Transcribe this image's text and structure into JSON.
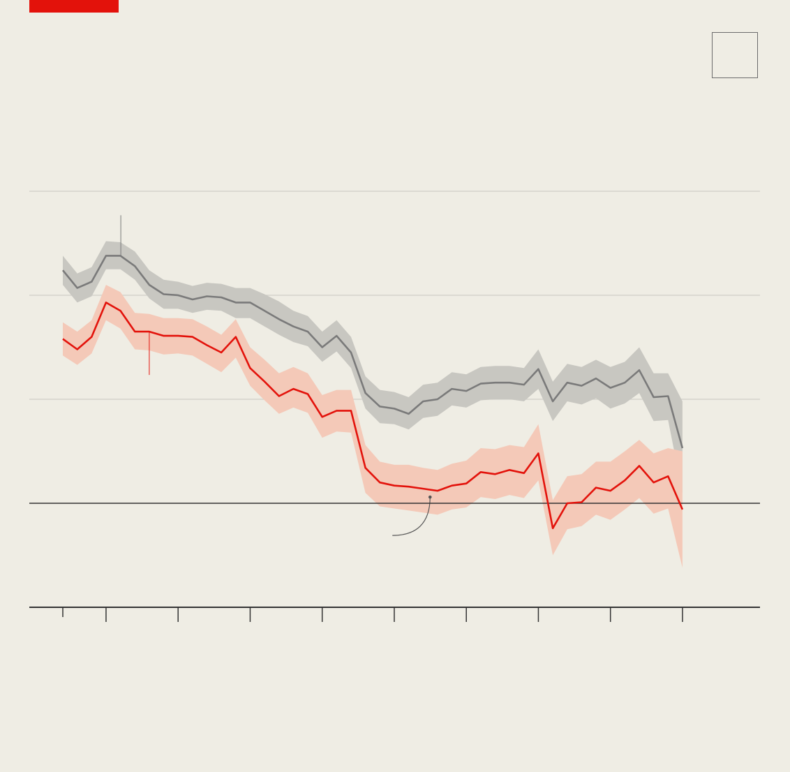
{
  "colors": {
    "background": "#efede4",
    "brand_red": "#e3120b",
    "series_grey": "#7a7a7a",
    "band_grey": "#c8c7c1",
    "band_red": "#f4c9b8",
    "grid": "#cfcdc6",
    "axis": "#333333"
  },
  "chart_data": {
    "type": "line",
    "title": "",
    "xlabel": "",
    "ylabel": "",
    "ylim": [
      -1,
      3
    ],
    "baseline": 0,
    "grid": true,
    "x": [
      0,
      1,
      2,
      3,
      4,
      5,
      6,
      7,
      8,
      9,
      10,
      11,
      12,
      13,
      14,
      15,
      16,
      17,
      18,
      19,
      20,
      21,
      22,
      23,
      24,
      25,
      26,
      27,
      28,
      29,
      30,
      31,
      32,
      33,
      34,
      35,
      36,
      37,
      38,
      39,
      40,
      41,
      42,
      43
    ],
    "x_ticks": [
      0,
      3,
      8,
      13,
      18,
      23,
      28,
      33,
      38,
      43
    ],
    "series": [
      {
        "name": "",
        "color": "grey",
        "values": [
          2.24,
          2.07,
          2.13,
          2.38,
          2.38,
          2.28,
          2.1,
          2.01,
          2.0,
          1.96,
          1.99,
          1.98,
          1.93,
          1.93,
          1.85,
          1.77,
          1.7,
          1.65,
          1.5,
          1.61,
          1.45,
          1.06,
          0.93,
          0.91,
          0.86,
          0.98,
          1.0,
          1.1,
          1.08,
          1.15,
          1.16,
          1.16,
          1.14,
          1.29,
          0.98,
          1.16,
          1.13,
          1.2,
          1.11,
          1.16,
          1.28,
          1.02,
          1.03,
          0.53
        ],
        "lower": [
          2.1,
          1.93,
          1.99,
          2.25,
          2.25,
          2.15,
          1.97,
          1.87,
          1.87,
          1.83,
          1.86,
          1.85,
          1.78,
          1.78,
          1.7,
          1.62,
          1.55,
          1.51,
          1.36,
          1.46,
          1.3,
          0.91,
          0.77,
          0.76,
          0.71,
          0.82,
          0.84,
          0.94,
          0.92,
          0.99,
          1.0,
          1.0,
          0.98,
          1.1,
          0.79,
          0.98,
          0.95,
          1.01,
          0.91,
          0.96,
          1.06,
          0.79,
          0.8,
          0.1
        ],
        "upper": [
          2.38,
          2.21,
          2.27,
          2.52,
          2.51,
          2.42,
          2.24,
          2.15,
          2.13,
          2.09,
          2.12,
          2.11,
          2.07,
          2.07,
          2.01,
          1.94,
          1.85,
          1.8,
          1.65,
          1.76,
          1.6,
          1.22,
          1.09,
          1.07,
          1.02,
          1.14,
          1.16,
          1.26,
          1.24,
          1.31,
          1.32,
          1.32,
          1.3,
          1.48,
          1.17,
          1.34,
          1.31,
          1.38,
          1.31,
          1.36,
          1.5,
          1.25,
          1.25,
          0.98
        ]
      },
      {
        "name": "",
        "color": "red",
        "values": [
          1.58,
          1.48,
          1.6,
          1.93,
          1.85,
          1.65,
          1.65,
          1.61,
          1.61,
          1.6,
          1.52,
          1.45,
          1.6,
          1.3,
          1.17,
          1.03,
          1.1,
          1.05,
          0.83,
          0.89,
          0.89,
          0.34,
          0.2,
          0.17,
          0.16,
          0.14,
          0.12,
          0.17,
          0.19,
          0.3,
          0.28,
          0.32,
          0.29,
          0.48,
          -0.24,
          0.0,
          0.01,
          0.15,
          0.12,
          0.22,
          0.36,
          0.2,
          0.26,
          -0.06
        ],
        "lower": [
          1.42,
          1.33,
          1.44,
          1.76,
          1.68,
          1.48,
          1.47,
          1.43,
          1.44,
          1.42,
          1.34,
          1.26,
          1.4,
          1.13,
          0.99,
          0.86,
          0.92,
          0.87,
          0.63,
          0.69,
          0.68,
          0.1,
          -0.03,
          -0.05,
          -0.07,
          -0.09,
          -0.11,
          -0.06,
          -0.04,
          0.06,
          0.04,
          0.08,
          0.05,
          0.22,
          -0.5,
          -0.25,
          -0.22,
          -0.11,
          -0.16,
          -0.06,
          0.05,
          -0.1,
          -0.05,
          -0.62
        ],
        "upper": [
          1.74,
          1.65,
          1.76,
          2.1,
          2.03,
          1.83,
          1.82,
          1.78,
          1.78,
          1.77,
          1.7,
          1.62,
          1.77,
          1.5,
          1.38,
          1.25,
          1.31,
          1.25,
          1.04,
          1.09,
          1.09,
          0.56,
          0.4,
          0.37,
          0.37,
          0.34,
          0.32,
          0.38,
          0.41,
          0.53,
          0.52,
          0.56,
          0.54,
          0.76,
          0.03,
          0.26,
          0.28,
          0.4,
          0.4,
          0.5,
          0.61,
          0.48,
          0.53,
          0.5
        ]
      }
    ],
    "annotation_lines": [
      {
        "series": 0,
        "x": 4,
        "direction": "up"
      },
      {
        "series": 1,
        "x": 6,
        "direction": "down"
      },
      {
        "series": 1,
        "x": 25,
        "direction": "callout-left"
      }
    ]
  }
}
